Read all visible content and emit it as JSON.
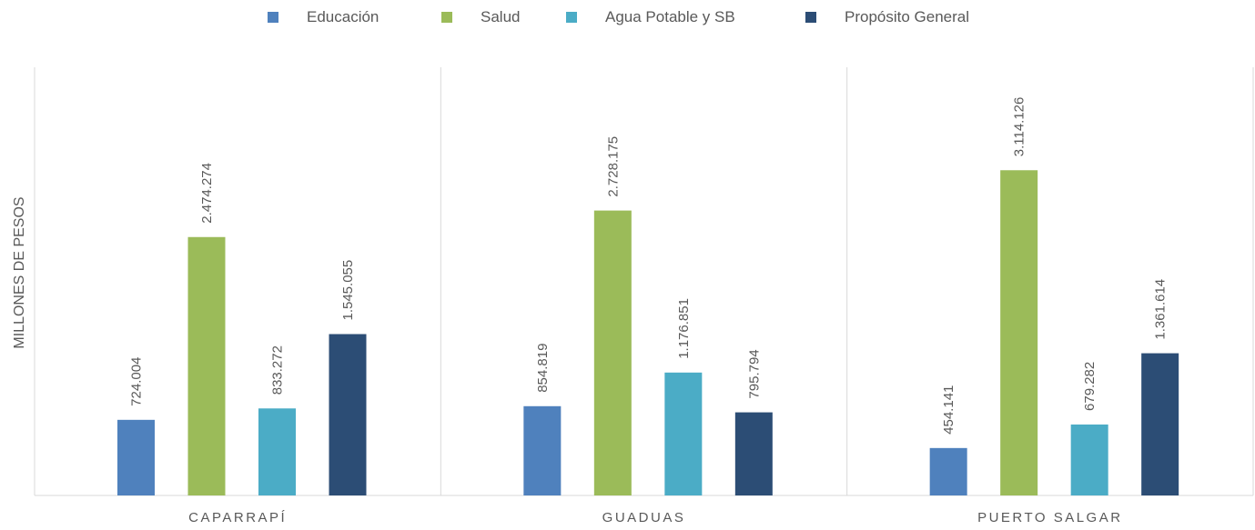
{
  "chart_data": {
    "type": "bar",
    "ylabel": "MILLONES DE PESOS",
    "categories": [
      "CAPARRAPÍ",
      "GUADUAS",
      "PUERTO SALGAR"
    ],
    "series": [
      {
        "name": "Educación",
        "color": "#4f81bd",
        "values": [
          724004,
          854819,
          454141
        ],
        "labels": [
          "724.004",
          "854.819",
          "454.141"
        ]
      },
      {
        "name": "Salud",
        "color": "#9bbb59",
        "values": [
          2474274,
          2728175,
          3114126
        ],
        "labels": [
          "2.474.274",
          "2.728.175",
          "3.114.126"
        ]
      },
      {
        "name": "Agua Potable y SB",
        "color": "#4bacc6",
        "values": [
          833272,
          1176851,
          679282
        ],
        "labels": [
          "833.272",
          "1.176.851",
          "679.282"
        ]
      },
      {
        "name": "Propósito General",
        "color": "#2c4d75",
        "values": [
          1545055,
          795794,
          1361614
        ],
        "labels": [
          "1.545.055",
          "795.794",
          "1.361.614"
        ]
      }
    ],
    "ylim": [
      0,
      4100000
    ],
    "grid": false,
    "category_separators": true,
    "legend_position": "top"
  }
}
